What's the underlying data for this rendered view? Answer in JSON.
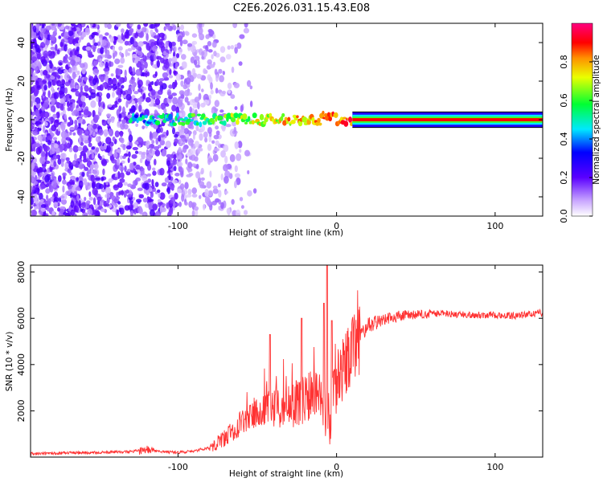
{
  "title": "C2E6.2026.031.15.43.E08",
  "chart_data": [
    {
      "type": "heatmap",
      "name": "spectrogram",
      "xlabel": "Height of straight line (km)",
      "ylabel": "Frequency (Hz)",
      "xlim": [
        -193,
        130
      ],
      "ylim": [
        -50,
        50
      ],
      "xticks": [
        -100,
        0,
        100
      ],
      "yticks": [
        -40,
        -20,
        0,
        20,
        40
      ],
      "colorbar": {
        "label": "Normalized spectral amplitude",
        "range": [
          0,
          1
        ],
        "ticks": [
          0.0,
          0.2,
          0.4,
          0.6,
          0.8
        ],
        "colormap": "rainbow (white-violet-blue-cyan-green-yellow-red-magenta)"
      },
      "features": {
        "noise_region_x": [
          -193,
          -75
        ],
        "signal_trace_frequency_hz": 0,
        "trace_x_range": [
          -130,
          10
        ],
        "constant_line_x_range": [
          10,
          130
        ],
        "constant_line_amplitude": 0.9
      }
    },
    {
      "type": "line",
      "name": "snr",
      "xlabel": "Height of straight line (km)",
      "ylabel": "SNR (10 * v/v)",
      "xlim": [
        -193,
        130
      ],
      "ylim": [
        0,
        8300
      ],
      "xticks": [
        -100,
        0,
        100
      ],
      "yticks": [
        2000,
        4000,
        6000,
        8000
      ],
      "series": [
        {
          "name": "SNR",
          "color": "#ff3333",
          "x": [
            -193,
            -170,
            -150,
            -130,
            -120,
            -110,
            -100,
            -90,
            -80,
            -70,
            -60,
            -50,
            -40,
            -30,
            -20,
            -15,
            -10,
            -5,
            0,
            5,
            10,
            15,
            20,
            30,
            40,
            50,
            60,
            70,
            80,
            90,
            100,
            110,
            120,
            130
          ],
          "y": [
            150,
            180,
            200,
            230,
            320,
            230,
            200,
            260,
            420,
            850,
            1500,
            1900,
            2100,
            2200,
            2450,
            2700,
            3000,
            1600,
            3300,
            3900,
            4600,
            5200,
            5700,
            5950,
            6100,
            6150,
            6200,
            6200,
            6150,
            6150,
            6150,
            6100,
            6150,
            6250
          ]
        }
      ],
      "annotations": {
        "spikes": [
          {
            "x": -6,
            "y": 8300
          },
          {
            "x": -8,
            "y": 6650
          },
          {
            "x": -22,
            "y": 6000
          },
          {
            "x": -42,
            "y": 5300
          },
          {
            "x": -3,
            "y": 5900
          }
        ]
      }
    }
  ]
}
